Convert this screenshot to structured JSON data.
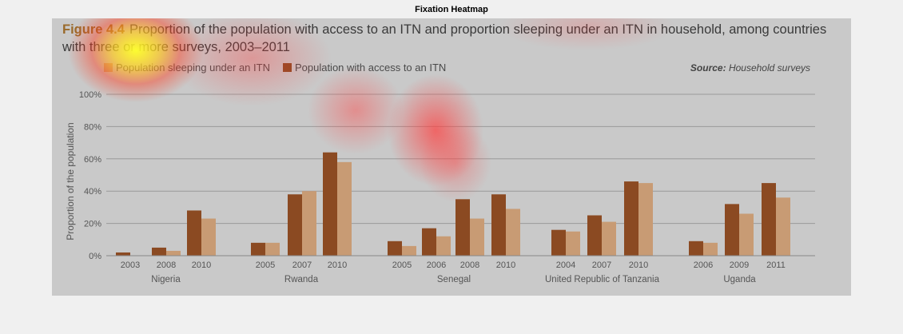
{
  "window_title": "Fixation Heatmap",
  "figure": {
    "label": "Figure 4.4",
    "title_rest": "Proportion of the population with access to an ITN and proportion sleeping under an ITN in household, among countries with three or more surveys, 2003–2011",
    "source_label": "Source:",
    "source_text": "Household surveys"
  },
  "colors": {
    "access": "#8b4a22",
    "sleeping": "#c89b74",
    "figure_bg": "#c9c9c9",
    "grid": "#9a9a9a"
  },
  "chart_data": {
    "type": "bar",
    "ylabel": "Proportion of the population",
    "ylim": [
      0,
      100
    ],
    "yticks": [
      "0%",
      "20%",
      "40%",
      "60%",
      "80%",
      "100%"
    ],
    "legend": "top-left",
    "series": [
      {
        "name": "Population sleeping under an ITN",
        "color": "#c89b74"
      },
      {
        "name": "Population with access to an ITN",
        "color": "#8b4a22"
      }
    ],
    "groups": [
      {
        "name": "Nigeria",
        "bars": [
          {
            "year": "2003",
            "access": 2,
            "sleeping": 0
          },
          {
            "year": "2008",
            "access": 5,
            "sleeping": 3
          },
          {
            "year": "2010",
            "access": 28,
            "sleeping": 23
          }
        ]
      },
      {
        "name": "Rwanda",
        "bars": [
          {
            "year": "2005",
            "access": 8,
            "sleeping": 8
          },
          {
            "year": "2007",
            "access": 38,
            "sleeping": 40
          },
          {
            "year": "2010",
            "access": 64,
            "sleeping": 58
          }
        ]
      },
      {
        "name": "Senegal",
        "bars": [
          {
            "year": "2005",
            "access": 9,
            "sleeping": 6
          },
          {
            "year": "2006",
            "access": 17,
            "sleeping": 12
          },
          {
            "year": "2008",
            "access": 35,
            "sleeping": 23
          },
          {
            "year": "2010",
            "access": 38,
            "sleeping": 29
          }
        ]
      },
      {
        "name": "United Republic of Tanzania",
        "bars": [
          {
            "year": "2004",
            "access": 16,
            "sleeping": 15
          },
          {
            "year": "2007",
            "access": 25,
            "sleeping": 21
          },
          {
            "year": "2010",
            "access": 46,
            "sleeping": 45
          }
        ]
      },
      {
        "name": "Uganda",
        "bars": [
          {
            "year": "2006",
            "access": 9,
            "sleeping": 8
          },
          {
            "year": "2009",
            "access": 32,
            "sleeping": 26
          },
          {
            "year": "2011",
            "access": 45,
            "sleeping": 36
          }
        ]
      }
    ]
  }
}
